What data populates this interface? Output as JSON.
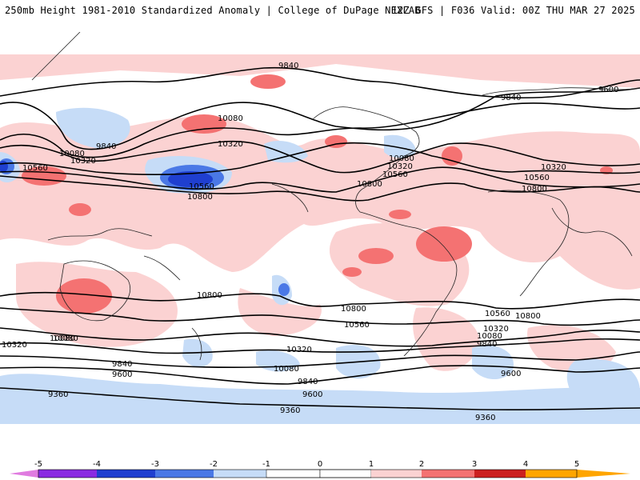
{
  "header": {
    "left": "250mb Height 1981-2010 Standardized Anomaly | College of DuPage NEXLAB",
    "right": "12Z GFS | F036 Valid: 00Z THU MAR 27 2025"
  },
  "colors": {
    "neg5": "#e07be0",
    "neg4": "#8a2be2",
    "neg3": "#1f3fd0",
    "neg2": "#4a78e6",
    "neg1": "#c6dcf7",
    "neutral": "#ffffff",
    "pos1": "#fbd2d2",
    "pos2": "#f47272",
    "pos3": "#cc2020",
    "pos4": "#b00000",
    "pos5": "#ffa500"
  },
  "colorbar": {
    "ticks": [
      "-5",
      "-4",
      "-3",
      "-2",
      "-1",
      "0",
      "1",
      "2",
      "3",
      "4",
      "5"
    ]
  },
  "contour_labels": [
    "9840",
    "9600",
    "9840",
    "10080",
    "10080",
    "9840",
    "10320",
    "10560",
    "10320",
    "10560",
    "10800",
    "10080",
    "10320",
    "10560",
    "10800",
    "10320",
    "10560",
    "10800",
    "10800",
    "10800",
    "10560",
    "10560",
    "10800",
    "10320",
    "10320",
    "10080",
    "10080",
    "10080",
    "9840",
    "9840",
    "9840",
    "9600",
    "9600",
    "9600",
    "9360",
    "9360",
    "9360",
    "10320",
    "10080"
  ]
}
